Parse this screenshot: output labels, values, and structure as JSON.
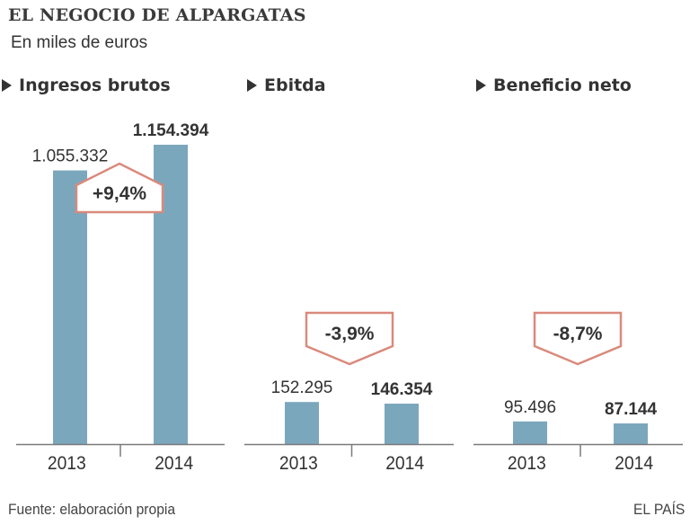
{
  "header": {
    "title": "EL NEGOCIO DE ALPARGATAS",
    "subtitle": "En miles de euros"
  },
  "footer": {
    "source": "Fuente: elaboración propia",
    "brand": "EL PAÍS"
  },
  "colors": {
    "bar": "#7ba7bd",
    "badge_stroke": "#d98a7c",
    "axis": "#7a7a7a",
    "text": "#333333"
  },
  "chart_data": [
    {
      "type": "bar",
      "title": "Ingresos brutos",
      "categories": [
        "2013",
        "2014"
      ],
      "values": [
        1055332,
        1154394
      ],
      "value_labels": [
        "1.055.332",
        "1.154.394"
      ],
      "change_label": "+9,4%",
      "change_direction": "up",
      "xlabel": "",
      "ylabel": "",
      "grid": false
    },
    {
      "type": "bar",
      "title": "Ebitda",
      "categories": [
        "2013",
        "2014"
      ],
      "values": [
        152295,
        146354
      ],
      "value_labels": [
        "152.295",
        "146.354"
      ],
      "change_label": "-3,9%",
      "change_direction": "down",
      "xlabel": "",
      "ylabel": "",
      "grid": false
    },
    {
      "type": "bar",
      "title": "Beneficio neto",
      "categories": [
        "2013",
        "2014"
      ],
      "values": [
        95496,
        87144
      ],
      "value_labels": [
        "95.496",
        "87.144"
      ],
      "change_label": "-8,7%",
      "change_direction": "down",
      "xlabel": "",
      "ylabel": "",
      "grid": false
    }
  ]
}
